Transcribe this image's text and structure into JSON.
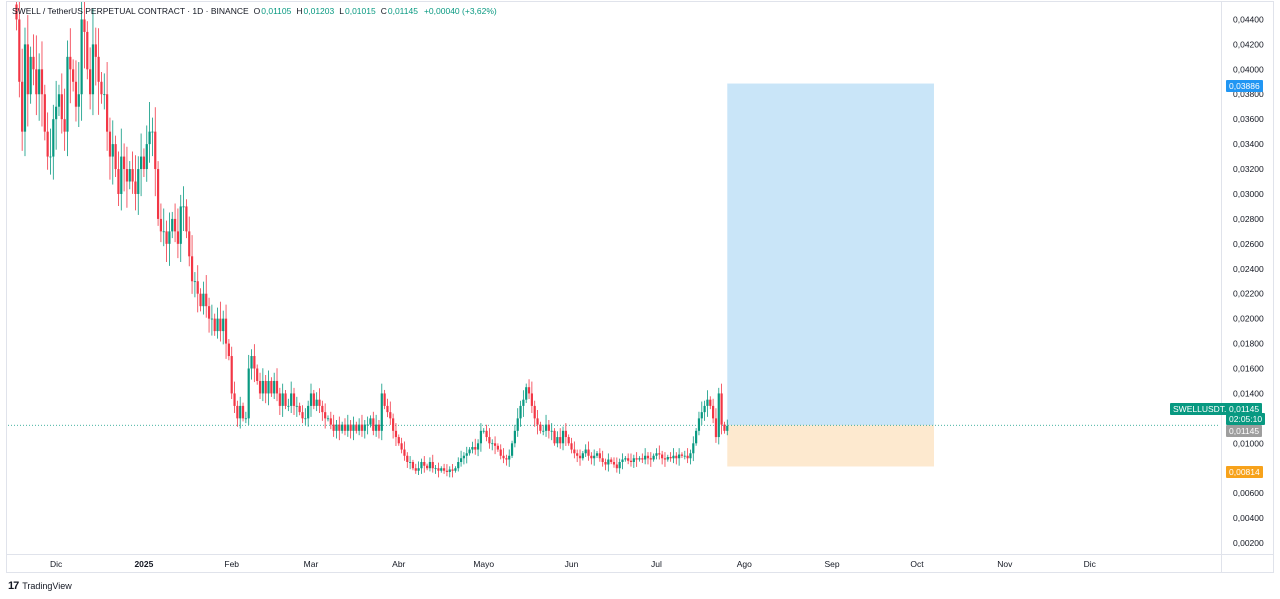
{
  "header": {
    "symbol": "SWELL / TetherUS PERPETUAL CONTRACT · 1D · BINANCE",
    "o_label": "O",
    "o_value": "0,01105",
    "h_label": "H",
    "h_value": "0,01203",
    "l_label": "L",
    "l_value": "0,01015",
    "c_label": "C",
    "c_value": "0,01145",
    "change": "+0,00040 (+3,62%)"
  },
  "footer": {
    "brand": "TradingView",
    "logo": "17"
  },
  "price_axis": {
    "ticks": [
      "0,04400",
      "0,04200",
      "0,04000",
      "0,03800",
      "0,03600",
      "0,03400",
      "0,03200",
      "0,03000",
      "0,02800",
      "0,02600",
      "0,02400",
      "0,02200",
      "0,02000",
      "0,01800",
      "0,01600",
      "0,01400",
      "0,01000",
      "0,00600",
      "0,00400",
      "0,00200"
    ],
    "tick_values": [
      0.044,
      0.042,
      0.04,
      0.038,
      0.036,
      0.034,
      0.032,
      0.03,
      0.028,
      0.026,
      0.024,
      0.022,
      0.02,
      0.018,
      0.016,
      0.014,
      0.01,
      0.006,
      0.004,
      0.002
    ]
  },
  "time_axis": {
    "labels": [
      "Dic",
      "2025",
      "Feb",
      "Mar",
      "Abr",
      "Mayo",
      "Jun",
      "Jul",
      "Ago",
      "Sep",
      "Oct",
      "Nov",
      "Dic"
    ]
  },
  "badges": {
    "target_label": "0,03886",
    "ticker_label": "SWELLUSDT.P",
    "last_price_label": "0,01145",
    "countdown_label": "02:05:10",
    "entry_label": "0,01145",
    "stop_label": "0,00814"
  },
  "colors": {
    "up": "#089981",
    "down": "#f23645",
    "wick": "#131722",
    "profit_zone": "#bfe0f7",
    "loss_zone": "#fde9cf",
    "target_badge": "#2196f3",
    "stop_badge": "#f7a21b",
    "entry_badge": "#9e9e9e",
    "ticker_badge": "#089981"
  },
  "chart_data": {
    "type": "candlestick",
    "title": "SWELL / TetherUS PERPETUAL CONTRACT · 1D · BINANCE",
    "ylim": [
      0.0012,
      0.0454
    ],
    "x": [
      "2024-11-17",
      "2024-11-18",
      "2024-11-19",
      "2024-11-20",
      "2024-11-21",
      "2024-11-22",
      "2024-11-23",
      "2024-11-24",
      "2024-11-25",
      "2024-11-26",
      "2024-11-27",
      "2024-11-28",
      "2024-11-29",
      "2024-11-30",
      "2024-12-01",
      "2024-12-02",
      "2024-12-03",
      "2024-12-04",
      "2024-12-05",
      "2024-12-06",
      "2024-12-07",
      "2024-12-08",
      "2024-12-09",
      "2024-12-10",
      "2024-12-11",
      "2024-12-12",
      "2024-12-13",
      "2024-12-14",
      "2024-12-15",
      "2024-12-16",
      "2024-12-17",
      "2024-12-18",
      "2024-12-19",
      "2024-12-20",
      "2024-12-21",
      "2024-12-22",
      "2024-12-23",
      "2024-12-24",
      "2024-12-25",
      "2024-12-26",
      "2024-12-27",
      "2024-12-28",
      "2024-12-29",
      "2024-12-30",
      "2024-12-31",
      "2025-01-01",
      "2025-01-02",
      "2025-01-03",
      "2025-01-04",
      "2025-01-05",
      "2025-01-06",
      "2025-01-07",
      "2025-01-08",
      "2025-01-09",
      "2025-01-10",
      "2025-01-11",
      "2025-01-12",
      "2025-01-13",
      "2025-01-14",
      "2025-01-15",
      "2025-01-16",
      "2025-01-17",
      "2025-01-18",
      "2025-01-19",
      "2025-01-20",
      "2025-01-21",
      "2025-01-22",
      "2025-01-23",
      "2025-01-24",
      "2025-01-25",
      "2025-01-26",
      "2025-01-27",
      "2025-01-28",
      "2025-01-29",
      "2025-01-30",
      "2025-01-31",
      "2025-02-01",
      "2025-02-02",
      "2025-02-03",
      "2025-02-04",
      "2025-02-05",
      "2025-02-06",
      "2025-02-07",
      "2025-02-08",
      "2025-02-09",
      "2025-02-10",
      "2025-02-11",
      "2025-02-12",
      "2025-02-13",
      "2025-02-14",
      "2025-02-15",
      "2025-02-16",
      "2025-02-17",
      "2025-02-18",
      "2025-02-19",
      "2025-02-20",
      "2025-02-21",
      "2025-02-22",
      "2025-02-23",
      "2025-02-24",
      "2025-02-25",
      "2025-02-26",
      "2025-02-27",
      "2025-02-28",
      "2025-03-01",
      "2025-03-02",
      "2025-03-03",
      "2025-03-04",
      "2025-03-05",
      "2025-03-06",
      "2025-03-07",
      "2025-03-08",
      "2025-03-09",
      "2025-03-10",
      "2025-03-11",
      "2025-03-12",
      "2025-03-13",
      "2025-03-14",
      "2025-03-15",
      "2025-03-16",
      "2025-03-17",
      "2025-03-18",
      "2025-03-19",
      "2025-03-20",
      "2025-03-21",
      "2025-03-22",
      "2025-03-23",
      "2025-03-24",
      "2025-03-25",
      "2025-03-26",
      "2025-03-27",
      "2025-03-28",
      "2025-03-29",
      "2025-03-30",
      "2025-03-31",
      "2025-04-01",
      "2025-04-02",
      "2025-04-03",
      "2025-04-04",
      "2025-04-05",
      "2025-04-06",
      "2025-04-07",
      "2025-04-08",
      "2025-04-09",
      "2025-04-10",
      "2025-04-11",
      "2025-04-12",
      "2025-04-13",
      "2025-04-14",
      "2025-04-15",
      "2025-04-16",
      "2025-04-17",
      "2025-04-18",
      "2025-04-19",
      "2025-04-20",
      "2025-04-21",
      "2025-04-22",
      "2025-04-23",
      "2025-04-24",
      "2025-04-25",
      "2025-04-26",
      "2025-04-27",
      "2025-04-28",
      "2025-04-29",
      "2025-04-30",
      "2025-05-01",
      "2025-05-02",
      "2025-05-03",
      "2025-05-04",
      "2025-05-05",
      "2025-05-06",
      "2025-05-07",
      "2025-05-08",
      "2025-05-09",
      "2025-05-10",
      "2025-05-11",
      "2025-05-12",
      "2025-05-13",
      "2025-05-14",
      "2025-05-15",
      "2025-05-16",
      "2025-05-17",
      "2025-05-18",
      "2025-05-19",
      "2025-05-20",
      "2025-05-21",
      "2025-05-22",
      "2025-05-23",
      "2025-05-24",
      "2025-05-25",
      "2025-05-26",
      "2025-05-27",
      "2025-05-28",
      "2025-05-29",
      "2025-05-30",
      "2025-05-31",
      "2025-06-01",
      "2025-06-02",
      "2025-06-03",
      "2025-06-04",
      "2025-06-05",
      "2025-06-06",
      "2025-06-07",
      "2025-06-08",
      "2025-06-09",
      "2025-06-10",
      "2025-06-11",
      "2025-06-12",
      "2025-06-13",
      "2025-06-14",
      "2025-06-15",
      "2025-06-16",
      "2025-06-17",
      "2025-06-18",
      "2025-06-19",
      "2025-06-20",
      "2025-06-21",
      "2025-06-22",
      "2025-06-23",
      "2025-06-24",
      "2025-06-25",
      "2025-06-26",
      "2025-06-27",
      "2025-06-28",
      "2025-06-29",
      "2025-06-30",
      "2025-07-01",
      "2025-07-02",
      "2025-07-03",
      "2025-07-04",
      "2025-07-05",
      "2025-07-06",
      "2025-07-07",
      "2025-07-08",
      "2025-07-09",
      "2025-07-10",
      "2025-07-11",
      "2025-07-12",
      "2025-07-13",
      "2025-07-14",
      "2025-07-15",
      "2025-07-16",
      "2025-07-17",
      "2025-07-18",
      "2025-07-19",
      "2025-07-20",
      "2025-07-21",
      "2025-07-22",
      "2025-07-23",
      "2025-07-24",
      "2025-07-25",
      "2025-07-26"
    ],
    "close": [
      0.044,
      0.039,
      0.035,
      0.042,
      0.038,
      0.041,
      0.04,
      0.038,
      0.04,
      0.038,
      0.035,
      0.033,
      0.033,
      0.036,
      0.037,
      0.038,
      0.036,
      0.035,
      0.041,
      0.04,
      0.039,
      0.037,
      0.038,
      0.044,
      0.043,
      0.04,
      0.038,
      0.042,
      0.041,
      0.039,
      0.038,
      0.038,
      0.035,
      0.033,
      0.034,
      0.032,
      0.03,
      0.033,
      0.032,
      0.031,
      0.032,
      0.031,
      0.03,
      0.032,
      0.033,
      0.032,
      0.034,
      0.035,
      0.035,
      0.032,
      0.028,
      0.027,
      0.027,
      0.026,
      0.027,
      0.028,
      0.027,
      0.026,
      0.029,
      0.029,
      0.027,
      0.025,
      0.023,
      0.023,
      0.022,
      0.021,
      0.022,
      0.021,
      0.02,
      0.02,
      0.019,
      0.02,
      0.019,
      0.02,
      0.018,
      0.017,
      0.014,
      0.013,
      0.012,
      0.013,
      0.012,
      0.012,
      0.016,
      0.017,
      0.016,
      0.015,
      0.014,
      0.015,
      0.014,
      0.015,
      0.014,
      0.015,
      0.014,
      0.013,
      0.014,
      0.013,
      0.013,
      0.014,
      0.013,
      0.013,
      0.0125,
      0.012,
      0.012,
      0.013,
      0.014,
      0.013,
      0.0135,
      0.013,
      0.0125,
      0.012,
      0.012,
      0.0115,
      0.011,
      0.0115,
      0.011,
      0.0115,
      0.011,
      0.0115,
      0.011,
      0.0115,
      0.011,
      0.0115,
      0.011,
      0.0115,
      0.0115,
      0.012,
      0.011,
      0.0115,
      0.011,
      0.014,
      0.013,
      0.0125,
      0.012,
      0.011,
      0.0105,
      0.01,
      0.0095,
      0.009,
      0.0085,
      0.0085,
      0.008,
      0.0078,
      0.008,
      0.0085,
      0.0082,
      0.008,
      0.0085,
      0.008,
      0.008,
      0.0078,
      0.008,
      0.0078,
      0.0077,
      0.0079,
      0.0078,
      0.008,
      0.0085,
      0.0088,
      0.009,
      0.0092,
      0.0095,
      0.0097,
      0.0095,
      0.01,
      0.011,
      0.011,
      0.0105,
      0.01,
      0.01,
      0.0098,
      0.0095,
      0.009,
      0.0088,
      0.0087,
      0.009,
      0.01,
      0.011,
      0.012,
      0.013,
      0.0135,
      0.0145,
      0.014,
      0.013,
      0.012,
      0.0115,
      0.011,
      0.011,
      0.0115,
      0.011,
      0.011,
      0.01,
      0.0105,
      0.01,
      0.011,
      0.0105,
      0.01,
      0.0095,
      0.0092,
      0.009,
      0.0088,
      0.0092,
      0.0095,
      0.009,
      0.0088,
      0.009,
      0.0092,
      0.0088,
      0.0085,
      0.0083,
      0.0087,
      0.0085,
      0.0083,
      0.008,
      0.0085,
      0.0087,
      0.0088,
      0.0086,
      0.0085,
      0.0088,
      0.0087,
      0.0088,
      0.0087,
      0.009,
      0.0088,
      0.0087,
      0.009,
      0.0092,
      0.0091,
      0.0088,
      0.0087,
      0.0089,
      0.0088,
      0.009,
      0.0088,
      0.0091,
      0.009,
      0.009,
      0.0088,
      0.0092,
      0.01,
      0.011,
      0.012,
      0.0125,
      0.013,
      0.0135,
      0.013,
      0.012,
      0.0105,
      0.014,
      0.0115,
      0.011,
      0.0114
    ],
    "target_price": 0.03886,
    "entry_price": 0.01145,
    "stop_price": 0.00814,
    "position_start": "2025-07-26",
    "position_end": "2025-10-07",
    "time_axis_range": [
      "2024-11-14",
      "2026-01-16"
    ],
    "grid": false
  }
}
